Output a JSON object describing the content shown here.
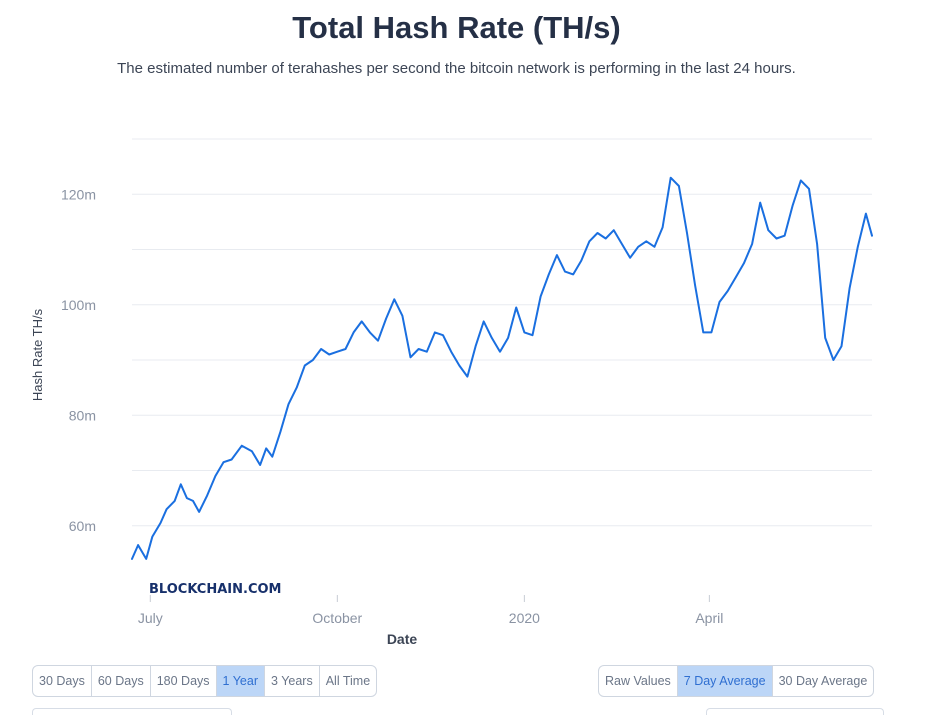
{
  "header": {
    "title": "Total Hash Rate (TH/s)",
    "subtitle": "The estimated number of terahashes per second the bitcoin network is performing in the last 24 hours."
  },
  "watermark": "BLOCKCHAIN.COM",
  "colors": {
    "line": "#1a6fe0",
    "grid": "#e8ebf0",
    "active_button": "#bcd6f7"
  },
  "range_buttons": [
    {
      "label": "30 Days",
      "active": false
    },
    {
      "label": "60 Days",
      "active": false
    },
    {
      "label": "180 Days",
      "active": false
    },
    {
      "label": "1 Year",
      "active": true
    },
    {
      "label": "3 Years",
      "active": false
    },
    {
      "label": "All Time",
      "active": false
    }
  ],
  "mode_buttons": [
    {
      "label": "Raw Values",
      "active": false
    },
    {
      "label": "7 Day Average",
      "active": true
    },
    {
      "label": "30 Day Average",
      "active": false
    }
  ],
  "chart_data": {
    "type": "line",
    "title": "Total Hash Rate (TH/s)",
    "xlabel": "Date",
    "ylabel": "Hash Rate TH/s",
    "x_ticks": [
      {
        "label": "July",
        "date": "2019-07-01"
      },
      {
        "label": "October",
        "date": "2019-10-01"
      },
      {
        "label": "2020",
        "date": "2020-01-01"
      },
      {
        "label": "April",
        "date": "2020-04-01"
      }
    ],
    "y_ticks": [
      {
        "label": "60m",
        "value": 60000000
      },
      {
        "label": "80m",
        "value": 80000000
      },
      {
        "label": "100m",
        "value": 100000000
      },
      {
        "label": "120m",
        "value": 120000000
      }
    ],
    "xlim": [
      "2019-06-22",
      "2020-06-20"
    ],
    "ylim": [
      50000000,
      132000000
    ],
    "grid": true,
    "series": [
      {
        "x": [
          "2019-06-22",
          "2019-06-25",
          "2019-06-29",
          "2019-07-02",
          "2019-07-06",
          "2019-07-09",
          "2019-07-13",
          "2019-07-16",
          "2019-07-19",
          "2019-07-22",
          "2019-07-25",
          "2019-07-29",
          "2019-08-02",
          "2019-08-06",
          "2019-08-10",
          "2019-08-15",
          "2019-08-20",
          "2019-08-24",
          "2019-08-27",
          "2019-08-30",
          "2019-09-03",
          "2019-09-07",
          "2019-09-11",
          "2019-09-15",
          "2019-09-19",
          "2019-09-23",
          "2019-09-27",
          "2019-10-01",
          "2019-10-05",
          "2019-10-09",
          "2019-10-13",
          "2019-10-17",
          "2019-10-21",
          "2019-10-25",
          "2019-10-29",
          "2019-11-02",
          "2019-11-06",
          "2019-11-10",
          "2019-11-14",
          "2019-11-18",
          "2019-11-22",
          "2019-11-26",
          "2019-11-30",
          "2019-12-04",
          "2019-12-08",
          "2019-12-12",
          "2019-12-16",
          "2019-12-20",
          "2019-12-24",
          "2019-12-28",
          "2020-01-01",
          "2020-01-05",
          "2020-01-09",
          "2020-01-13",
          "2020-01-17",
          "2020-01-21",
          "2020-01-25",
          "2020-01-29",
          "2020-02-02",
          "2020-02-06",
          "2020-02-10",
          "2020-02-14",
          "2020-02-18",
          "2020-02-22",
          "2020-02-26",
          "2020-03-01",
          "2020-03-05",
          "2020-03-09",
          "2020-03-13",
          "2020-03-17",
          "2020-03-21",
          "2020-03-25",
          "2020-03-29",
          "2020-04-02",
          "2020-04-06",
          "2020-04-10",
          "2020-04-14",
          "2020-04-18",
          "2020-04-22",
          "2020-04-26",
          "2020-04-30",
          "2020-05-04",
          "2020-05-08",
          "2020-05-12",
          "2020-05-16",
          "2020-05-20",
          "2020-05-24",
          "2020-05-28",
          "2020-06-01",
          "2020-06-05",
          "2020-06-09",
          "2020-06-13",
          "2020-06-17",
          "2020-06-20"
        ],
        "values": [
          54000000,
          56500000,
          54000000,
          58000000,
          60500000,
          63000000,
          64500000,
          67500000,
          65000000,
          64500000,
          62500000,
          65500000,
          69000000,
          71500000,
          72000000,
          74500000,
          73500000,
          71000000,
          74000000,
          72500000,
          77000000,
          82000000,
          85000000,
          89000000,
          90000000,
          92000000,
          91000000,
          91500000,
          92000000,
          95000000,
          97000000,
          95000000,
          93500000,
          97500000,
          101000000,
          98000000,
          90500000,
          92000000,
          91500000,
          95000000,
          94500000,
          91500000,
          89000000,
          87000000,
          92500000,
          97000000,
          94000000,
          91500000,
          94000000,
          99500000,
          95000000,
          94500000,
          101500000,
          105500000,
          109000000,
          106000000,
          105500000,
          108000000,
          111500000,
          113000000,
          112000000,
          113500000,
          111000000,
          108500000,
          110500000,
          111500000,
          110500000,
          114000000,
          123000000,
          121500000,
          113000000,
          103500000,
          95000000,
          95000000,
          100500000,
          102500000,
          105000000,
          107500000,
          111000000,
          118500000,
          113500000,
          112000000,
          112500000,
          118000000,
          122500000,
          121000000,
          111000000,
          94000000,
          90000000,
          92500000,
          103000000,
          110500000,
          116500000,
          112500000
        ]
      }
    ]
  }
}
